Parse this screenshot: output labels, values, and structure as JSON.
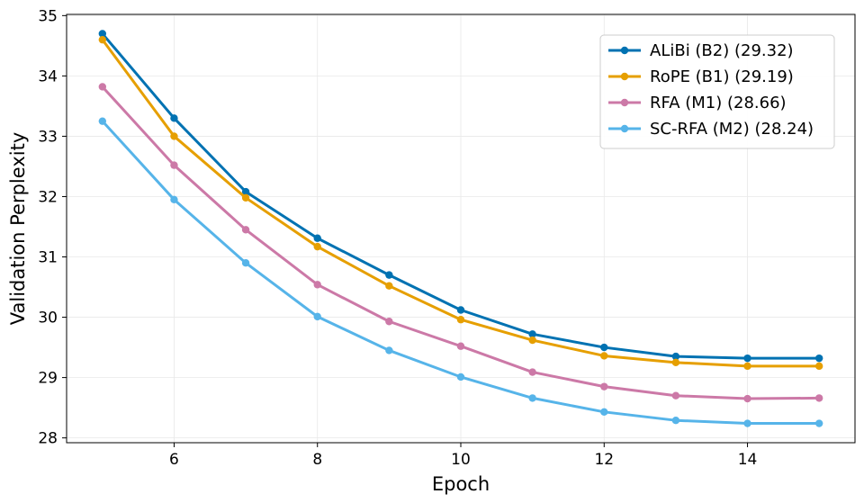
{
  "chart_data": {
    "type": "line",
    "title": "",
    "xlabel": "Epoch",
    "ylabel": "Validation Perplexity",
    "xlim": [
      4.5,
      15.5
    ],
    "ylim": [
      27.92,
      35.02
    ],
    "xticks": [
      6,
      8,
      10,
      12,
      14
    ],
    "yticks": [
      28,
      29,
      30,
      31,
      32,
      33,
      34,
      35
    ],
    "grid": true,
    "legend_position": "top-right",
    "x": [
      5,
      6,
      7,
      8,
      9,
      10,
      11,
      12,
      13,
      14,
      15
    ],
    "series": [
      {
        "name": "ALiBi (B2) (29.32)",
        "color": "#0072b2",
        "values": [
          34.7,
          33.3,
          32.08,
          31.31,
          30.7,
          30.12,
          29.72,
          29.5,
          29.35,
          29.32,
          29.32
        ]
      },
      {
        "name": "RoPE (B1) (29.19)",
        "color": "#e69f00",
        "values": [
          34.6,
          33.0,
          31.98,
          31.17,
          30.52,
          29.96,
          29.62,
          29.36,
          29.25,
          29.19,
          29.19
        ]
      },
      {
        "name": "RFA (M1) (28.66)",
        "color": "#cc79a7",
        "values": [
          33.82,
          32.52,
          31.45,
          30.54,
          29.93,
          29.52,
          29.09,
          28.85,
          28.7,
          28.65,
          28.66
        ]
      },
      {
        "name": "SC-RFA (M2) (28.24)",
        "color": "#56b4e9",
        "values": [
          33.25,
          31.95,
          30.9,
          30.01,
          29.45,
          29.01,
          28.66,
          28.43,
          28.29,
          28.24,
          28.24
        ]
      }
    ]
  }
}
